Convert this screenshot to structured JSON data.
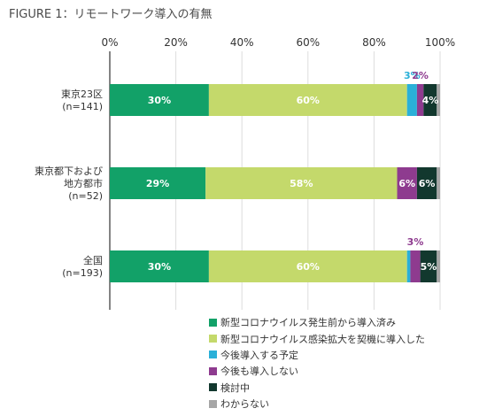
{
  "chart_data": {
    "type": "bar",
    "orientation": "horizontal",
    "stacked": true,
    "title": "FIGURE 1：リモートワーク導入の有無",
    "xlim": [
      0,
      100
    ],
    "x_ticks": [
      "0%",
      "20%",
      "40%",
      "60%",
      "80%",
      "100%"
    ],
    "grid": true,
    "legend_position": "bottom",
    "categories": [
      [
        "東京23区",
        "(n=141)"
      ],
      [
        "東京都下および",
        "地方都市",
        "(n=52)"
      ],
      [
        "全国",
        "(n=193)"
      ]
    ],
    "series": [
      {
        "name": "新型コロナウイルス発生前から導入済み",
        "color": "#12a168",
        "values": [
          30,
          29,
          30
        ],
        "labels": [
          "30%",
          "29%",
          "30%"
        ]
      },
      {
        "name": "新型コロナウイルス感染拡大を契機に導入した",
        "color": "#c4d96b",
        "values": [
          60,
          58,
          60
        ],
        "labels": [
          "60%",
          "58%",
          "60%"
        ]
      },
      {
        "name": "今後導入する予定",
        "color": "#2ab0d8",
        "values": [
          3,
          0,
          1
        ],
        "labels": [
          "3%",
          "",
          ""
        ]
      },
      {
        "name": "今後も導入しない",
        "color": "#8e3b8f",
        "values": [
          2,
          6,
          3
        ],
        "labels": [
          "2%",
          "6%",
          "3%"
        ]
      },
      {
        "name": "検討中",
        "color": "#12382e",
        "values": [
          4,
          6,
          5
        ],
        "labels": [
          "4%",
          "6%",
          "5%"
        ]
      },
      {
        "name": "わからない",
        "color": "#a6a6a6",
        "values": [
          1,
          1,
          1
        ],
        "labels": [
          "",
          "",
          ""
        ]
      }
    ]
  }
}
